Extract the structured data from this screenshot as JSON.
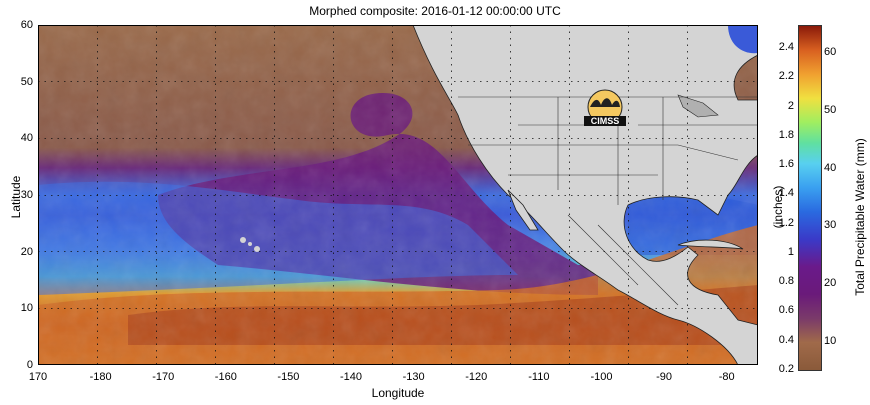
{
  "title": "Morphed composite: 2016-01-12 00:00:00 UTC",
  "xaxis": {
    "label": "Longitude",
    "ticks": [
      "170",
      "-180",
      "-170",
      "-160",
      "-150",
      "-140",
      "-130",
      "-120",
      "-110",
      "-100",
      "-90",
      "-80"
    ],
    "tick_values": [
      170,
      180,
      190,
      200,
      210,
      220,
      230,
      240,
      250,
      260,
      270,
      280
    ],
    "range": [
      170,
      285
    ]
  },
  "yaxis": {
    "label": "Latitude",
    "ticks": [
      "0",
      "10",
      "20",
      "30",
      "40",
      "50",
      "60"
    ],
    "tick_values": [
      0,
      10,
      20,
      30,
      40,
      50,
      60
    ],
    "range": [
      0,
      60
    ]
  },
  "grid": "dotted",
  "colorbar": {
    "inches_label": "(inches)",
    "mm_label": "Total Precipitable Water (mm)",
    "inches_ticks": [
      "2.4",
      "2.2",
      "2",
      "1.8",
      "1.6",
      "1.4",
      "1.2",
      "1",
      "0.8",
      "0.6",
      "0.4",
      "0.2"
    ],
    "inches_values": [
      2.4,
      2.2,
      2.0,
      1.8,
      1.6,
      1.4,
      1.2,
      1.0,
      0.8,
      0.6,
      0.4,
      0.2
    ],
    "mm_ticks": [
      "60",
      "50",
      "40",
      "30",
      "20",
      "10"
    ],
    "mm_values": [
      60,
      50,
      40,
      30,
      20,
      10
    ],
    "range_inches": [
      0.2,
      2.55
    ]
  },
  "logo": {
    "text": "CIMSS"
  },
  "colors": {
    "land": "#d4d4d4",
    "dry": "#9a6a4a",
    "purple": "#6a1a7a",
    "blue": "#3a5ae0",
    "cyan": "#40b8f0",
    "green": "#70e090",
    "orange": "#e08030",
    "red": "#a03010"
  }
}
